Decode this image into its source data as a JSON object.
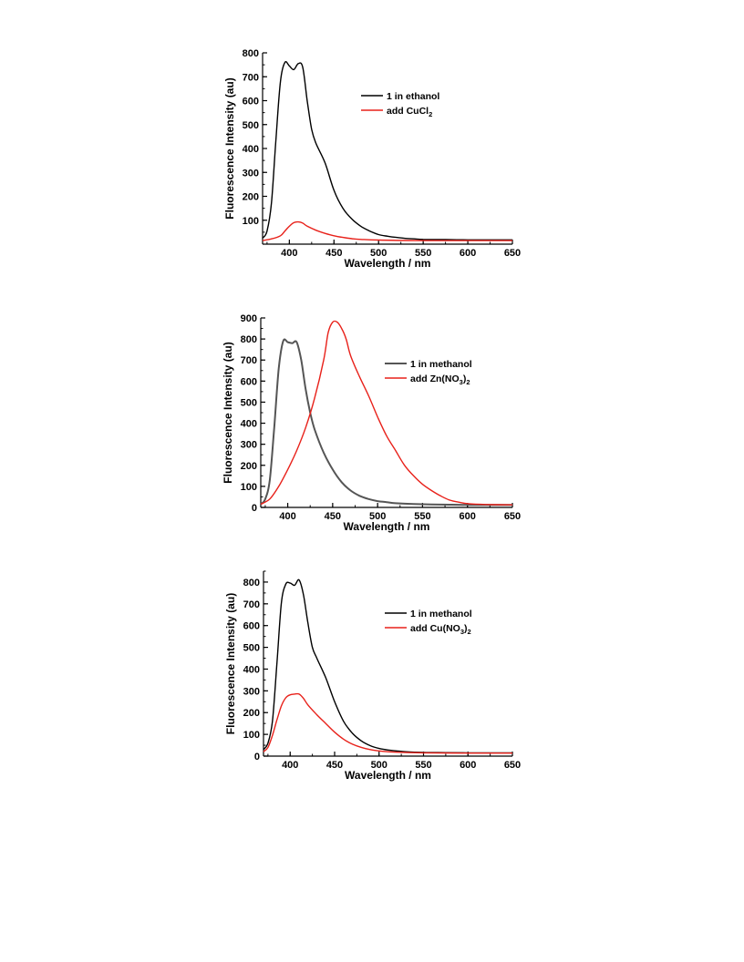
{
  "chart_data": [
    {
      "type": "line",
      "xlabel": "Wavelength / nm",
      "ylabel": "Fluorescence Intensity (au)",
      "xlim": [
        370,
        650
      ],
      "ylim": [
        0,
        800
      ],
      "xticks": [
        400,
        450,
        500,
        550,
        600,
        650
      ],
      "yticks": [
        100,
        200,
        300,
        400,
        500,
        600,
        700,
        800
      ],
      "x_minor_step": 25,
      "y_minor_step": 50,
      "legend": "right",
      "series": [
        {
          "name": "1 in ethanol",
          "color": "#000000",
          "x": [
            370,
            375,
            380,
            385,
            390,
            395,
            400,
            405,
            410,
            415,
            420,
            425,
            430,
            440,
            450,
            460,
            470,
            480,
            490,
            500,
            510,
            520,
            530,
            540,
            550,
            575,
            600,
            625,
            650
          ],
          "y": [
            25,
            55,
            175,
            440,
            680,
            760,
            745,
            730,
            755,
            740,
            600,
            480,
            420,
            340,
            225,
            150,
            105,
            75,
            55,
            40,
            33,
            28,
            24,
            22,
            20,
            19,
            18,
            18,
            18
          ]
        },
        {
          "name": "add CuCl",
          "name_subscript": "2",
          "color": "#e8211a",
          "x": [
            370,
            380,
            390,
            395,
            400,
            405,
            410,
            415,
            420,
            430,
            440,
            450,
            460,
            470,
            480,
            500,
            550,
            600,
            650
          ],
          "y": [
            15,
            22,
            35,
            55,
            75,
            90,
            93,
            88,
            75,
            58,
            45,
            35,
            28,
            23,
            20,
            17,
            15,
            15,
            15
          ]
        }
      ]
    },
    {
      "type": "line",
      "xlabel": "Wavelength / nm",
      "ylabel": "Fluorescence Intensity (au)",
      "xlim": [
        370,
        650
      ],
      "ylim": [
        0,
        900
      ],
      "xticks": [
        400,
        450,
        500,
        550,
        600,
        650
      ],
      "yticks": [
        0,
        100,
        200,
        300,
        400,
        500,
        600,
        700,
        800,
        900
      ],
      "x_minor_step": 25,
      "y_minor_step": 50,
      "legend": "right",
      "series": [
        {
          "name": "1 in methanol",
          "color": "#555555",
          "x": [
            370,
            375,
            380,
            385,
            390,
            395,
            400,
            405,
            410,
            415,
            420,
            425,
            430,
            440,
            450,
            460,
            470,
            480,
            490,
            500,
            510,
            520,
            540,
            560,
            580,
            600,
            625,
            650
          ],
          "y": [
            15,
            40,
            130,
            380,
            660,
            790,
            785,
            780,
            785,
            700,
            560,
            450,
            370,
            260,
            180,
            120,
            80,
            55,
            40,
            30,
            25,
            20,
            16,
            14,
            13,
            12,
            12,
            12
          ]
        },
        {
          "name": "add Zn(NO",
          "name_subscript": "3",
          "name_suffix": ")",
          "name_suffix_subscript": "2",
          "color": "#e8211a",
          "x": [
            370,
            380,
            390,
            400,
            410,
            420,
            430,
            440,
            445,
            450,
            455,
            460,
            465,
            470,
            480,
            490,
            500,
            510,
            520,
            530,
            540,
            550,
            560,
            570,
            580,
            590,
            600,
            620,
            650
          ],
          "y": [
            15,
            40,
            100,
            180,
            270,
            380,
            520,
            700,
            830,
            880,
            880,
            850,
            800,
            720,
            620,
            530,
            430,
            340,
            270,
            200,
            150,
            110,
            80,
            55,
            35,
            25,
            18,
            14,
            12
          ]
        }
      ]
    },
    {
      "type": "line",
      "xlabel": "Wavelength / nm",
      "ylabel": "Fluorescence Intensity (au)",
      "xlim": [
        370,
        650
      ],
      "ylim": [
        0,
        850
      ],
      "xticks": [
        400,
        450,
        500,
        550,
        600,
        650
      ],
      "yticks": [
        0,
        100,
        200,
        300,
        400,
        500,
        600,
        700,
        800
      ],
      "x_minor_step": 25,
      "y_minor_step": 50,
      "legend": "right",
      "series": [
        {
          "name": "1 in methanol",
          "color": "#000000",
          "x": [
            370,
            375,
            380,
            385,
            390,
            395,
            400,
            405,
            410,
            415,
            420,
            425,
            430,
            440,
            450,
            460,
            470,
            480,
            490,
            500,
            510,
            520,
            530,
            550,
            575,
            600,
            625,
            650
          ],
          "y": [
            30,
            60,
            160,
            420,
            700,
            790,
            795,
            785,
            810,
            740,
            610,
            500,
            450,
            360,
            250,
            160,
            105,
            70,
            48,
            35,
            28,
            24,
            20,
            17,
            16,
            15,
            15,
            15
          ]
        },
        {
          "name": "add Cu(NO",
          "name_subscript": "3",
          "name_suffix": ")",
          "name_suffix_subscript": "2",
          "color": "#e8211a",
          "x": [
            370,
            375,
            380,
            385,
            390,
            395,
            400,
            405,
            410,
            415,
            420,
            430,
            440,
            450,
            460,
            470,
            480,
            490,
            500,
            510,
            520,
            550,
            600,
            650
          ],
          "y": [
            20,
            40,
            95,
            165,
            230,
            268,
            282,
            285,
            285,
            265,
            235,
            190,
            150,
            110,
            78,
            55,
            40,
            30,
            24,
            20,
            18,
            15,
            14,
            14
          ]
        }
      ]
    }
  ]
}
